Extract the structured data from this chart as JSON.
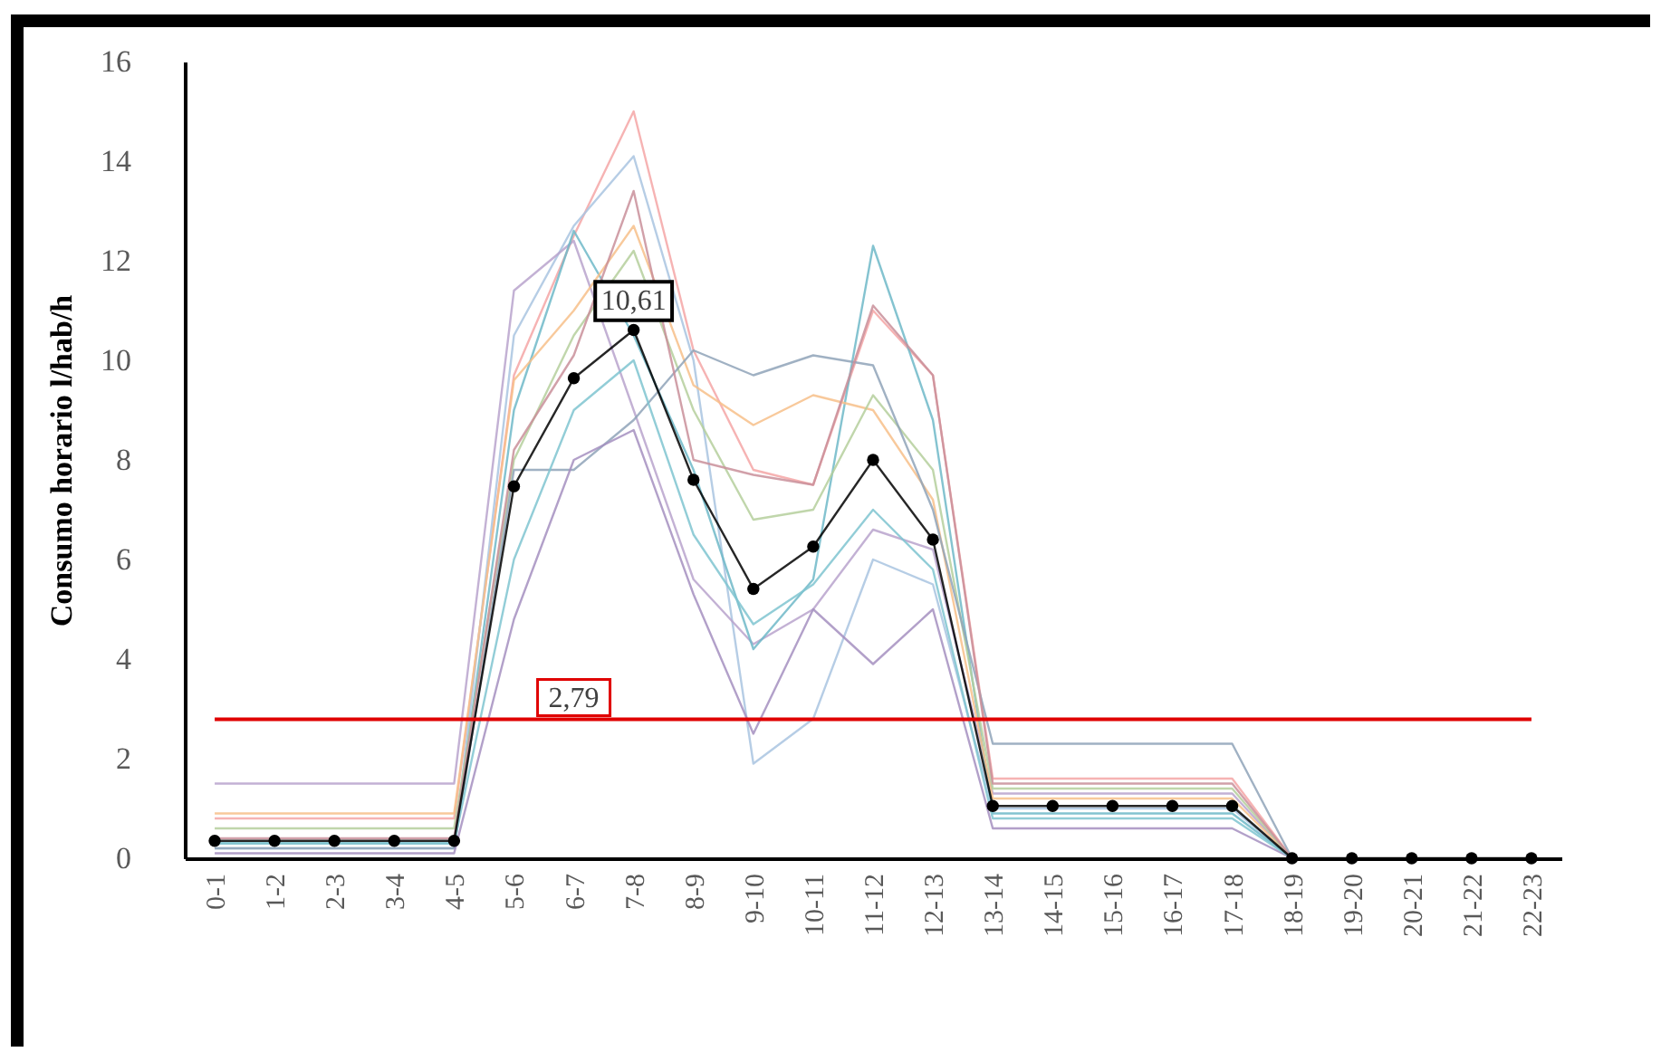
{
  "chart_data": {
    "type": "line",
    "ylabel": "Consumo horario l/hab/h",
    "categories": [
      "0-1",
      "1-2",
      "2-3",
      "3-4",
      "4-5",
      "5-6",
      "6-7",
      "7-8",
      "8-9",
      "9-10",
      "10-11",
      "11-12",
      "12-13",
      "13-14",
      "14-15",
      "15-16",
      "16-17",
      "17-18",
      "18-19",
      "19-20",
      "20-21",
      "21-22",
      "22-23"
    ],
    "series": [
      {
        "color": "#f4a6a6",
        "values": [
          0.8,
          0.8,
          0.8,
          0.8,
          0.8,
          9.7,
          12.5,
          15.0,
          10.2,
          7.8,
          7.5,
          11.0,
          9.7,
          1.6,
          1.6,
          1.6,
          1.6,
          1.6,
          0,
          null,
          null,
          null,
          null
        ]
      },
      {
        "color": "#a9c4e0",
        "values": [
          0.2,
          0.2,
          0.2,
          0.2,
          0.2,
          10.5,
          12.7,
          14.1,
          10.0,
          1.9,
          2.8,
          6.0,
          5.5,
          1.0,
          1.0,
          1.0,
          1.0,
          1.0,
          0,
          null,
          null,
          null,
          null
        ]
      },
      {
        "color": "#b9a3cc",
        "values": [
          1.5,
          1.5,
          1.5,
          1.5,
          1.5,
          11.4,
          12.4,
          9.0,
          5.6,
          4.3,
          5.0,
          6.6,
          6.2,
          1.3,
          1.3,
          1.3,
          1.3,
          1.3,
          0,
          null,
          null,
          null,
          null
        ]
      },
      {
        "color": "#6fb8c8",
        "values": [
          0.3,
          0.3,
          0.3,
          0.3,
          0.3,
          9.0,
          12.6,
          10.5,
          7.8,
          4.2,
          5.6,
          12.3,
          8.8,
          0.9,
          0.9,
          0.9,
          0.9,
          0.9,
          0,
          null,
          null,
          null,
          null
        ]
      },
      {
        "color": "#f7c08a",
        "values": [
          0.9,
          0.9,
          0.9,
          0.9,
          0.9,
          9.6,
          11.0,
          12.7,
          9.5,
          8.7,
          9.3,
          9.0,
          7.2,
          1.2,
          1.2,
          1.2,
          1.2,
          1.2,
          0,
          null,
          null,
          null,
          null
        ]
      },
      {
        "color": "#b5cf9c",
        "values": [
          0.6,
          0.6,
          0.6,
          0.6,
          0.6,
          8.0,
          10.5,
          12.2,
          9.0,
          6.8,
          7.0,
          9.3,
          7.8,
          1.4,
          1.4,
          1.4,
          1.4,
          1.4,
          0,
          null,
          null,
          null,
          null
        ]
      },
      {
        "color": "#8fa3b8",
        "values": [
          0.2,
          0.2,
          0.2,
          0.2,
          0.2,
          7.8,
          7.8,
          8.8,
          10.2,
          9.7,
          10.1,
          9.9,
          7.0,
          2.3,
          2.3,
          2.3,
          2.3,
          2.3,
          0,
          null,
          null,
          null,
          null
        ]
      },
      {
        "color": "#c98f9a",
        "values": [
          0.4,
          0.4,
          0.4,
          0.4,
          0.4,
          8.2,
          10.1,
          13.4,
          8.0,
          7.7,
          7.5,
          11.1,
          9.7,
          1.5,
          1.5,
          1.5,
          1.5,
          1.5,
          0,
          null,
          null,
          null,
          null
        ]
      },
      {
        "color": "#a48fbf",
        "values": [
          0.1,
          0.1,
          0.1,
          0.1,
          0.1,
          4.8,
          8.0,
          8.6,
          5.3,
          2.5,
          5.0,
          3.9,
          5.0,
          0.6,
          0.6,
          0.6,
          0.6,
          0.6,
          0,
          null,
          null,
          null,
          null
        ]
      },
      {
        "color": "#7fc4d0",
        "values": [
          0.3,
          0.3,
          0.3,
          0.3,
          0.3,
          6.0,
          9.0,
          10.0,
          6.5,
          4.7,
          5.5,
          7.0,
          5.8,
          0.8,
          0.8,
          0.8,
          0.8,
          0.8,
          0,
          null,
          null,
          null,
          null
        ]
      },
      {
        "color": "#000000",
        "marker": "circle",
        "values": [
          0.35,
          0.35,
          0.35,
          0.35,
          0.35,
          7.47,
          9.64,
          10.61,
          7.6,
          5.41,
          6.26,
          8.0,
          6.4,
          1.05,
          1.05,
          1.05,
          1.05,
          1.05,
          0,
          0,
          0,
          0,
          0
        ]
      }
    ],
    "ylim": [
      0,
      16
    ],
    "yticks": [
      0,
      2,
      4,
      6,
      8,
      10,
      12,
      14,
      16
    ],
    "grid": false,
    "legend": false,
    "ref_lines": [
      {
        "axis": "y",
        "value": 2.79,
        "label": "2,79",
        "color": "#e00000"
      }
    ],
    "annotations": [
      {
        "text": "10,61",
        "x": "7-8",
        "y": 10.61
      }
    ]
  }
}
